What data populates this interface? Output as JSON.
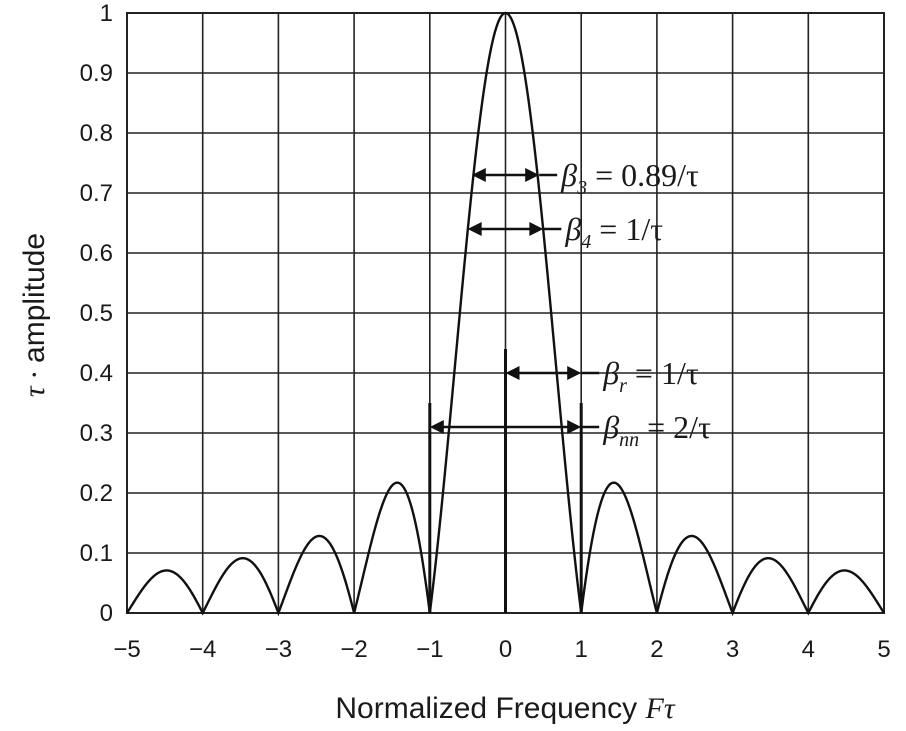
{
  "chart_data": {
    "type": "line",
    "title": "",
    "xlabel": "Normalized Frequency",
    "xlabel_symbol": "Fτ",
    "ylabel": "amplitude",
    "ylabel_symbol": "τ ·",
    "xlim": [
      -5,
      5
    ],
    "ylim": [
      0,
      1
    ],
    "x_ticks": [
      -5,
      -4,
      -3,
      -2,
      -1,
      0,
      1,
      2,
      3,
      4,
      5
    ],
    "x_tick_labels": [
      "−5",
      "−4",
      "−3",
      "−2",
      "−1",
      "0",
      "1",
      "2",
      "3",
      "4",
      "5"
    ],
    "y_ticks": [
      0,
      0.1,
      0.2,
      0.3,
      0.4,
      0.5,
      0.6,
      0.7,
      0.8,
      0.9,
      1
    ],
    "y_tick_labels": [
      "0",
      "0.1",
      "0.2",
      "0.3",
      "0.4",
      "0.5",
      "0.6",
      "0.7",
      "0.8",
      "0.9",
      "1"
    ],
    "grid": true,
    "series": [
      {
        "function": "|sin(πx)/(πx)|",
        "x": [
          -5,
          -4.5,
          -4,
          -3.5,
          -3,
          -2.5,
          -2,
          -1.5,
          -1,
          -0.5,
          0,
          0.5,
          1,
          1.5,
          2,
          2.5,
          3,
          3.5,
          4,
          4.5,
          5
        ],
        "values": [
          0,
          0.071,
          0,
          0.091,
          0,
          0.127,
          0,
          0.212,
          0,
          0.637,
          1,
          0.637,
          0,
          0.212,
          0,
          0.127,
          0,
          0.091,
          0,
          0.071,
          0
        ]
      }
    ],
    "vertical_markers": [
      {
        "x": -1,
        "height": 0.35
      },
      {
        "x": 0,
        "height": 0.44
      },
      {
        "x": 1,
        "height": 0.35
      }
    ],
    "annotations": [
      {
        "symbol": "β",
        "sub": "3",
        "text": " = 0.89/τ",
        "span": [
          -0.445,
          0.445
        ],
        "y": 0.73
      },
      {
        "symbol": "β",
        "sub": "4",
        "text": " = 1/τ",
        "span": [
          -0.5,
          0.5
        ],
        "y": 0.64
      },
      {
        "symbol": "β",
        "sub": "r",
        "text": " = 1/τ",
        "span": [
          0,
          1
        ],
        "y": 0.4
      },
      {
        "symbol": "β",
        "sub": "nn",
        "text": " = 2/τ",
        "span": [
          -1,
          1
        ],
        "y": 0.31
      }
    ]
  }
}
